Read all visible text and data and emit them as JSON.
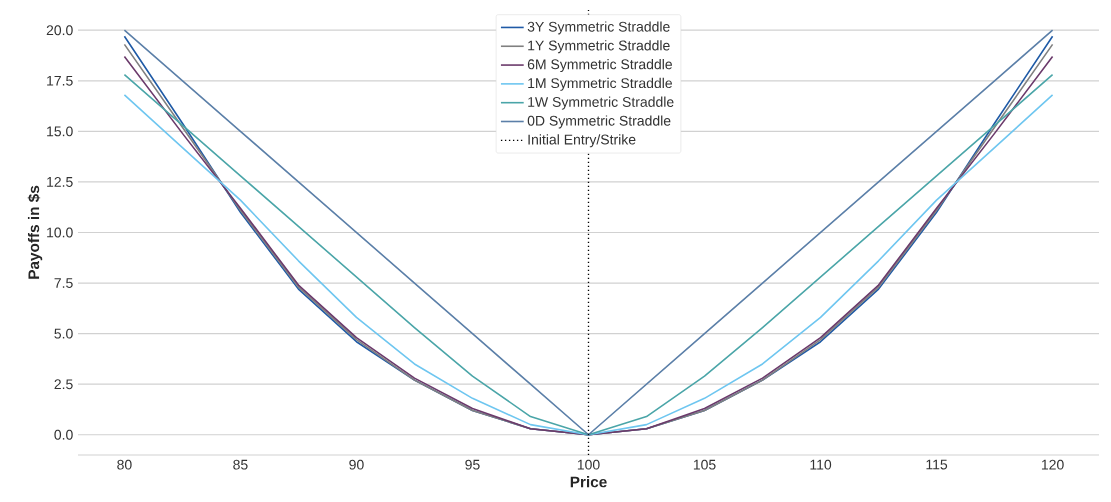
{
  "chart_data": {
    "type": "line",
    "xlabel": "Price",
    "ylabel": "Payoffs in $s",
    "x": [
      80,
      82.5,
      85,
      87.5,
      90,
      92.5,
      95,
      97.5,
      100,
      102.5,
      105,
      107.5,
      110,
      112.5,
      115,
      117.5,
      120
    ],
    "series": [
      {
        "name": "3Y Symmetric Straddle",
        "color": "#1f5aa6",
        "values": [
          19.7,
          15.4,
          11.0,
          7.2,
          4.6,
          2.7,
          1.2,
          0.3,
          0,
          0.3,
          1.2,
          2.7,
          4.6,
          7.2,
          11.0,
          15.4,
          19.7
        ]
      },
      {
        "name": "1Y Symmetric Straddle",
        "color": "#808080",
        "values": [
          19.3,
          15.2,
          11.1,
          7.3,
          4.7,
          2.7,
          1.2,
          0.3,
          0,
          0.3,
          1.2,
          2.7,
          4.7,
          7.3,
          11.1,
          15.2,
          19.3
        ]
      },
      {
        "name": "6M Symmetric Straddle",
        "color": "#6b3a6b",
        "values": [
          18.7,
          14.9,
          11.2,
          7.4,
          4.8,
          2.8,
          1.3,
          0.3,
          0,
          0.3,
          1.3,
          2.8,
          4.8,
          7.4,
          11.2,
          14.9,
          18.7
        ]
      },
      {
        "name": "1M Symmetric Straddle",
        "color": "#6ec6f0",
        "values": [
          16.8,
          14.2,
          11.6,
          8.6,
          5.8,
          3.5,
          1.8,
          0.5,
          0,
          0.5,
          1.8,
          3.5,
          5.8,
          8.6,
          11.6,
          14.2,
          16.8
        ]
      },
      {
        "name": "1W Symmetric Straddle",
        "color": "#4aa5a8",
        "values": [
          17.8,
          15.3,
          12.8,
          10.3,
          7.8,
          5.3,
          2.9,
          0.9,
          0,
          0.9,
          2.9,
          5.3,
          7.8,
          10.3,
          12.8,
          15.3,
          17.8
        ]
      },
      {
        "name": "0D Symmetric Straddle",
        "color": "#5b7fa8",
        "values": [
          20,
          17.5,
          15,
          12.5,
          10,
          7.5,
          5,
          2.5,
          0,
          2.5,
          5,
          7.5,
          10,
          12.5,
          15,
          17.5,
          20
        ]
      }
    ],
    "ref_lines": [
      {
        "axis": "x",
        "value": 100,
        "label": "Initial Entry/Strike",
        "color": "#000000",
        "line_style": "dotted"
      }
    ],
    "xlim": [
      78,
      122
    ],
    "ylim": [
      -1,
      21
    ],
    "xticks": [
      80,
      85,
      90,
      95,
      100,
      105,
      110,
      115,
      120
    ],
    "yticks": [
      {
        "value": 0,
        "label": "0.0"
      },
      {
        "value": 2.5,
        "label": "2.5"
      },
      {
        "value": 5,
        "label": "5.0"
      },
      {
        "value": 7.5,
        "label": "7.5"
      },
      {
        "value": 10,
        "label": "10.0"
      },
      {
        "value": 12.5,
        "label": "12.5"
      },
      {
        "value": 15,
        "label": "15.0"
      },
      {
        "value": 17.5,
        "label": "17.5"
      },
      {
        "value": 20,
        "label": "20.0"
      }
    ],
    "grid": "y",
    "legend": "top",
    "line_style": "solid",
    "marker": "none"
  }
}
